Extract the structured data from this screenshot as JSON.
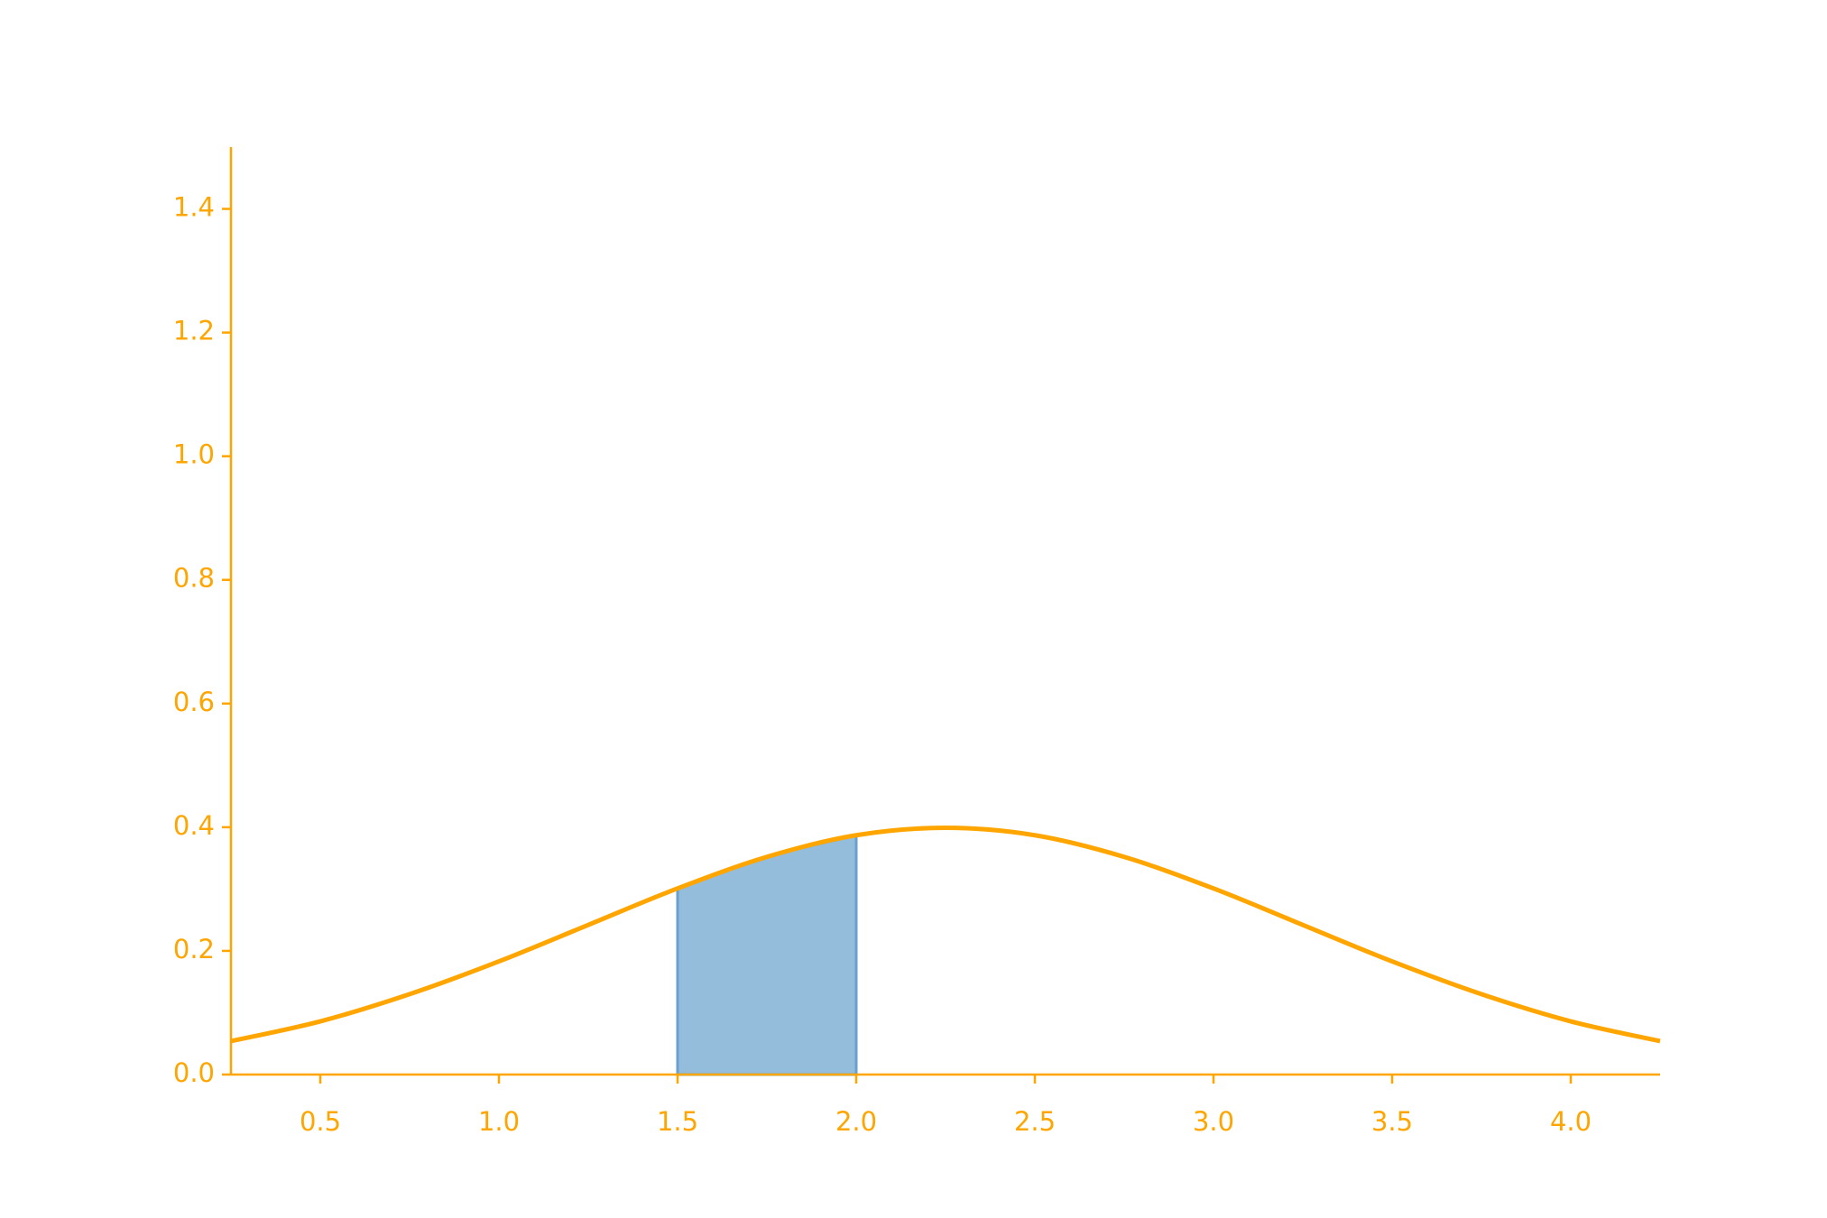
{
  "chart_data": {
    "type": "line",
    "x": [
      0.25,
      0.5,
      0.75,
      1.0,
      1.25,
      1.5,
      1.75,
      2.0,
      2.25,
      2.5,
      2.75,
      3.0,
      3.25,
      3.5,
      3.75,
      4.0,
      4.25
    ],
    "series": [
      {
        "color": "#ffa500",
        "values": [
          0.054,
          0.086,
          0.13,
          0.183,
          0.242,
          0.301,
          0.352,
          0.387,
          0.399,
          0.387,
          0.352,
          0.301,
          0.242,
          0.183,
          0.13,
          0.086,
          0.054
        ]
      }
    ],
    "shaded_area": {
      "x": [
        1.5,
        1.75,
        2.0
      ],
      "values": [
        0.301,
        0.352,
        0.387
      ],
      "color": "#94bcdb",
      "edge_color": "#6a9fd0"
    },
    "axis_color": "#ffa500",
    "xlim": [
      0.25,
      4.25
    ],
    "ylim": [
      0,
      1.5
    ],
    "xticks": [
      0.5,
      {
        "value": 1,
        "label": "1.0"
      },
      1.5,
      {
        "value": 2,
        "label": "2.0"
      },
      2.5,
      {
        "value": 3,
        "label": "3.0"
      },
      3.5,
      {
        "value": 4,
        "label": "4.0"
      }
    ],
    "yticks": [
      {
        "value": 0,
        "label": "0.0"
      },
      0.2,
      0.4,
      0.6,
      0.8,
      {
        "value": 1,
        "label": "1.0"
      },
      1.2,
      1.4
    ],
    "grid": false
  }
}
